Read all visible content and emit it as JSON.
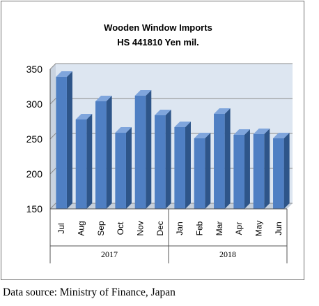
{
  "chart_data": {
    "type": "bar",
    "title": "Wooden Window Imports",
    "subtitle": "HS 441810 Yen mil.",
    "categories": [
      "Jul",
      "Aug",
      "Sep",
      "Oct",
      "Nov",
      "Dec",
      "Jan",
      "Feb",
      "Mar",
      "Apr",
      "May",
      "Jun"
    ],
    "values": [
      339,
      278,
      304,
      259,
      312,
      284,
      267,
      251,
      286,
      256,
      257,
      251
    ],
    "groups": [
      {
        "label": "2017",
        "count": 6
      },
      {
        "label": "2018",
        "count": 6
      }
    ],
    "yticks": [
      150,
      200,
      250,
      300,
      350
    ],
    "ylim": [
      150,
      350
    ],
    "grid": true,
    "colors": {
      "bar_front": "#4f7fc3",
      "bar_side": "#2e5589",
      "bar_top": "#7fa5dc",
      "grid": "#8c8c8c",
      "background": "#dde6f1"
    }
  },
  "source": "Data source: Ministry of Finance, Japan"
}
